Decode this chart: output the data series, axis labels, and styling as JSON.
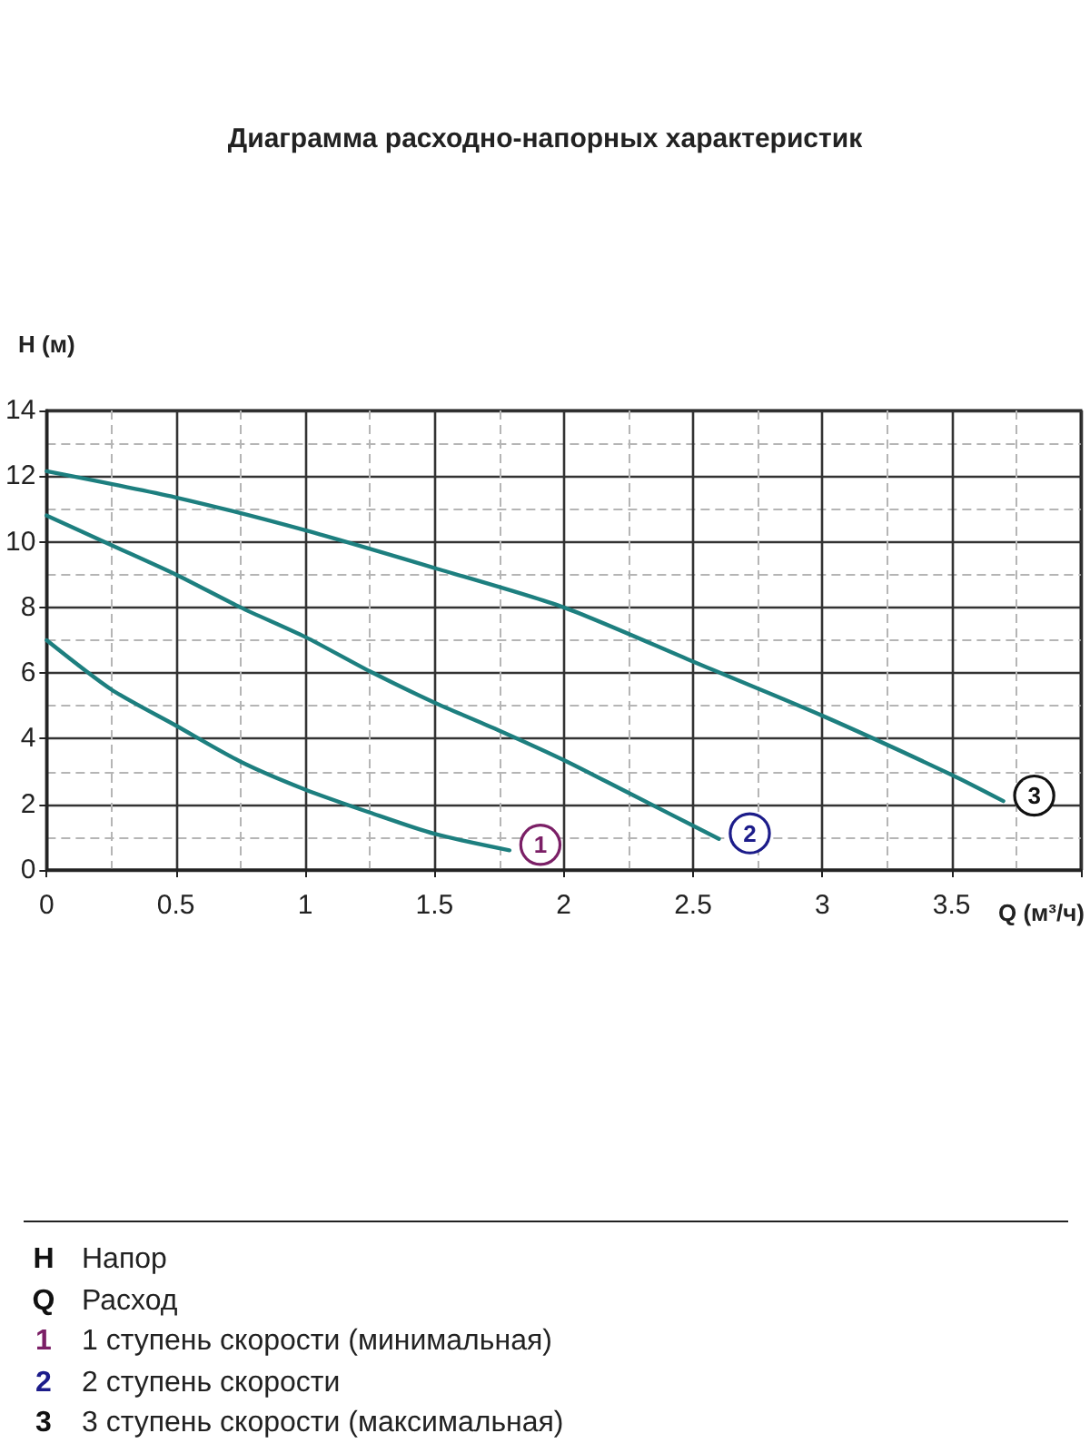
{
  "chart_data": {
    "type": "line",
    "title": "Диаграмма расходно-напорных характеристик",
    "xlabel": "Q (м³/ч)",
    "ylabel": "H (м)",
    "series": [
      {
        "name": "1",
        "color": "#1d7f7f",
        "x": [
          0,
          0.25,
          0.5,
          0.75,
          1,
          1.25,
          1.5,
          1.79
        ],
        "values": [
          7.0,
          5.5,
          4.4,
          3.3,
          2.45,
          1.75,
          1.1,
          0.6
        ]
      },
      {
        "name": "2",
        "color": "#1d7f7f",
        "x": [
          0,
          0.25,
          0.5,
          0.75,
          1,
          1.25,
          1.5,
          1.75,
          2,
          2.25,
          2.6
        ],
        "values": [
          10.8,
          9.9,
          9.0,
          8.0,
          7.1,
          6.05,
          5.1,
          4.25,
          3.35,
          2.35,
          0.95
        ]
      },
      {
        "name": "3",
        "color": "#1d7f7f",
        "x": [
          0,
          0.5,
          1,
          1.5,
          2,
          2.5,
          3,
          3.5,
          3.7
        ],
        "values": [
          12.15,
          11.35,
          10.35,
          9.2,
          8.0,
          6.35,
          4.7,
          2.9,
          2.1
        ]
      }
    ],
    "xlim": [
      0,
      4
    ],
    "xticks": [
      0,
      0.5,
      1,
      1.5,
      2,
      2.5,
      3,
      3.5,
      {
        "value": 4,
        "label": null
      }
    ],
    "ylim": [
      0,
      14
    ],
    "yticks": [
      0,
      2,
      4,
      6,
      8,
      10,
      12,
      14
    ],
    "grid": true,
    "marker": "none",
    "annotations": [
      "H Напор",
      "Q Расход",
      "1 1 ступень скорости (минимальная)",
      "2 2 ступень скорости",
      "3 3 ступень скорости (максимальная)"
    ]
  }
}
